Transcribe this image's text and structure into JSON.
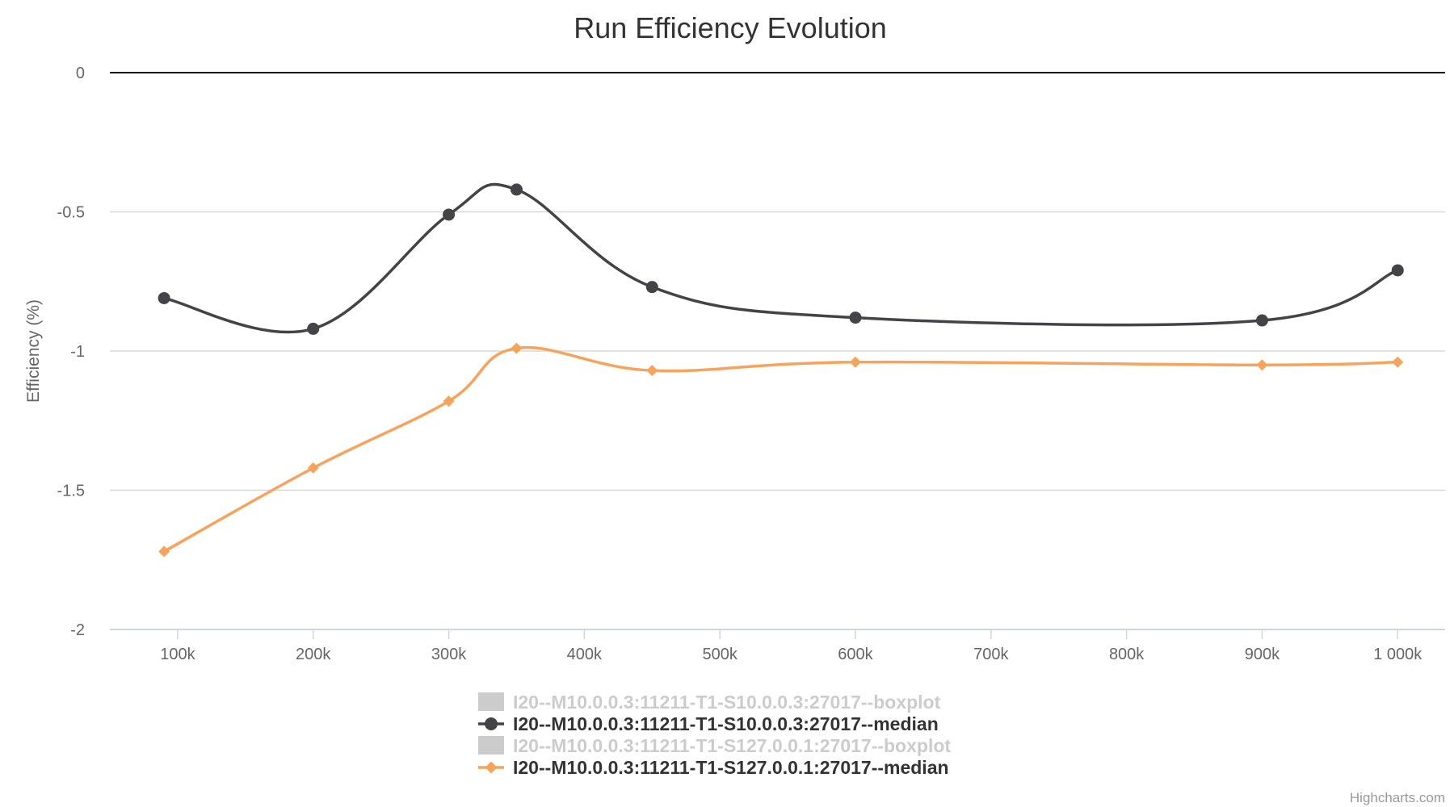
{
  "chart_data": {
    "type": "line",
    "title": "Run Efficiency Evolution",
    "xlabel": "",
    "ylabel": "Efficiency (%)",
    "xlim": [
      50000,
      1035000
    ],
    "ylim": [
      -2,
      0
    ],
    "x_ticks": [
      100000,
      200000,
      300000,
      400000,
      500000,
      600000,
      700000,
      800000,
      900000,
      1000000
    ],
    "x_tick_labels": [
      "100k",
      "200k",
      "300k",
      "400k",
      "500k",
      "600k",
      "700k",
      "800k",
      "900k",
      "1 000k"
    ],
    "y_ticks": [
      0,
      -0.5,
      -1,
      -1.5,
      -2
    ],
    "y_tick_labels": [
      "0",
      "-0.5",
      "-1",
      "-1.5",
      "-2"
    ],
    "grid": true,
    "legend_position": "bottom-center",
    "series": [
      {
        "name": "I20--M10.0.0.3:11211-T1-S10.0.0.3:27017--boxplot",
        "visible": false,
        "color": "#cccccc",
        "marker": "rect"
      },
      {
        "name": "I20--M10.0.0.3:11211-T1-S10.0.0.3:27017--median",
        "visible": true,
        "color": "#434348",
        "marker": "circle",
        "x": [
          90000,
          200000,
          300000,
          350000,
          450000,
          600000,
          900000,
          1000000
        ],
        "y": [
          -0.81,
          -0.92,
          -0.51,
          -0.42,
          -0.77,
          -0.88,
          -0.89,
          -0.71
        ]
      },
      {
        "name": "I20--M10.0.0.3:11211-T1-S127.0.0.1:27017--boxplot",
        "visible": false,
        "color": "#cccccc",
        "marker": "rect"
      },
      {
        "name": "I20--M10.0.0.3:11211-T1-S127.0.0.1:27017--median",
        "visible": true,
        "color": "#f7a35c",
        "marker": "diamond",
        "x": [
          90000,
          200000,
          300000,
          350000,
          450000,
          600000,
          900000,
          1000000
        ],
        "y": [
          -1.72,
          -1.42,
          -1.18,
          -0.99,
          -1.07,
          -1.04,
          -1.05,
          -1.04
        ]
      }
    ]
  },
  "credit": "Highcharts.com"
}
